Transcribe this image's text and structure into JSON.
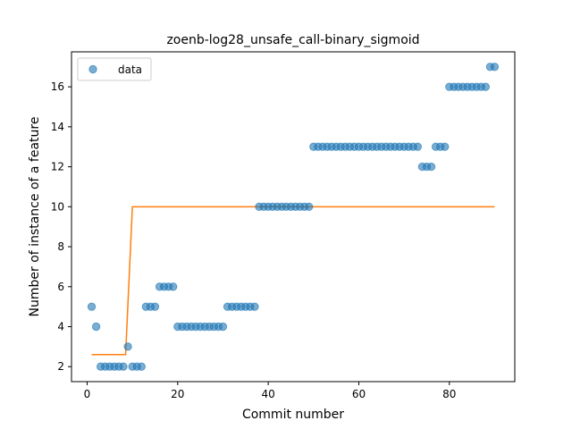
{
  "chart_data": {
    "type": "scatter",
    "title": "zoenb-log28_unsafe_call-binary_sigmoid",
    "xlabel": "Commit number",
    "ylabel": "Number of instance of a feature",
    "xlim": [
      -3.45,
      94.45
    ],
    "ylim": [
      1.25,
      17.75
    ],
    "xticks": [
      0,
      20,
      40,
      60,
      80
    ],
    "yticks": [
      2,
      4,
      6,
      8,
      10,
      12,
      14,
      16
    ],
    "grid": false,
    "legend": {
      "position": "top-left",
      "entries": [
        "data"
      ]
    },
    "colors": {
      "data": "#1f77b4",
      "fit": "#ff7f0e"
    },
    "series": [
      {
        "name": "data",
        "kind": "scatter",
        "x": [
          1,
          2,
          3,
          4,
          5,
          6,
          7,
          8,
          9,
          10,
          11,
          12,
          13,
          14,
          15,
          16,
          17,
          18,
          19,
          20,
          21,
          22,
          23,
          24,
          25,
          26,
          27,
          28,
          29,
          30,
          31,
          32,
          33,
          34,
          35,
          36,
          37,
          38,
          39,
          40,
          41,
          42,
          43,
          44,
          45,
          46,
          47,
          48,
          49,
          50,
          51,
          52,
          53,
          54,
          55,
          56,
          57,
          58,
          59,
          60,
          61,
          62,
          63,
          64,
          65,
          66,
          67,
          68,
          69,
          70,
          71,
          72,
          73,
          74,
          75,
          76,
          77,
          78,
          79,
          80,
          81,
          82,
          83,
          84,
          85,
          86,
          87,
          88,
          89,
          90
        ],
        "y": [
          5,
          4,
          2,
          2,
          2,
          2,
          2,
          2,
          3,
          2,
          2,
          2,
          5,
          5,
          5,
          6,
          6,
          6,
          6,
          4,
          4,
          4,
          4,
          4,
          4,
          4,
          4,
          4,
          4,
          4,
          5,
          5,
          5,
          5,
          5,
          5,
          5,
          10,
          10,
          10,
          10,
          10,
          10,
          10,
          10,
          10,
          10,
          10,
          10,
          13,
          13,
          13,
          13,
          13,
          13,
          13,
          13,
          13,
          13,
          13,
          13,
          13,
          13,
          13,
          13,
          13,
          13,
          13,
          13,
          13,
          13,
          13,
          13,
          12,
          12,
          12,
          13,
          13,
          13,
          16,
          16,
          16,
          16,
          16,
          16,
          16,
          16,
          16,
          17,
          17
        ]
      },
      {
        "kind": "line",
        "x": [
          1,
          8.5,
          10,
          90
        ],
        "y": [
          2.6,
          2.6,
          10,
          10
        ]
      }
    ]
  }
}
